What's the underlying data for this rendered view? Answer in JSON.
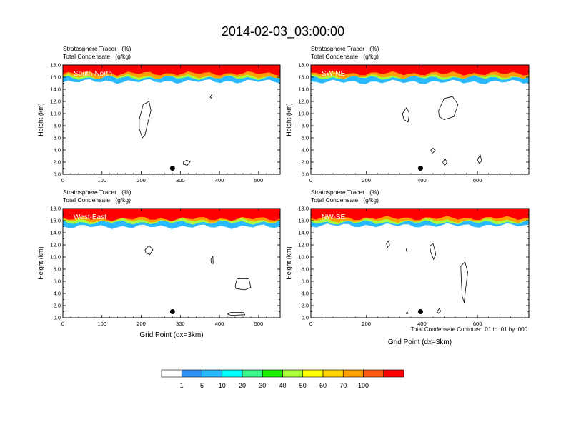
{
  "figure_title": "2014-02-03_03:00:00",
  "footnote": "Total Condensate Contours: .01 to .01 by .000",
  "colors": {
    "levels": [
      "#ffffff",
      "#2e8ff5",
      "#2ab9ff",
      "#00ffff",
      "#3cf78a",
      "#1ef000",
      "#aaff3c",
      "#ffff00",
      "#ffd200",
      "#ffa000",
      "#ff5a14",
      "#ff0000"
    ],
    "marker": "#000000",
    "contour": "#000000"
  },
  "chart_data": [
    {
      "type": "heatmap",
      "label": "South-North",
      "title_line1": "Stratosphere Tracer   (%)",
      "title_line2": "Total Condensate   (g/kg)",
      "xlabel": "",
      "ylabel": "Height (km)",
      "xlim": [
        0,
        555
      ],
      "ylim": [
        0,
        18
      ],
      "xticks": [
        0,
        100,
        200,
        300,
        400,
        500
      ],
      "yticks": [
        0.0,
        2.0,
        4.0,
        6.0,
        8.0,
        10.0,
        12.0,
        14.0,
        16.0,
        18.0
      ],
      "tracer_layers": [
        {
          "level": 100,
          "base_km": 16.6
        },
        {
          "level": 70,
          "base_km": 16.1
        },
        {
          "level": 40,
          "base_km": 15.9
        },
        {
          "level": 5,
          "base_km": 15.3
        }
      ],
      "marker": {
        "x": 280,
        "y_km": 1.0
      },
      "condensate_contours": [
        [
          [
            195,
            9
          ],
          [
            205,
            11.5
          ],
          [
            220,
            12
          ],
          [
            225,
            10.5
          ],
          [
            215,
            8
          ],
          [
            210,
            6.5
          ],
          [
            203,
            6
          ],
          [
            195,
            7.5
          ]
        ],
        [
          [
            307,
            2
          ],
          [
            316,
            2.3
          ],
          [
            325,
            2.1
          ],
          [
            318,
            1.5
          ],
          [
            308,
            1.6
          ]
        ],
        [
          [
            376,
            12.7
          ],
          [
            381,
            13.2
          ],
          [
            380,
            12.5
          ]
        ]
      ]
    },
    {
      "type": "heatmap",
      "label": "SW-NE",
      "title_line1": "Stratosphere Tracer   (%)",
      "title_line2": "Total Condensate   (g/kg)",
      "xlabel": "",
      "ylabel": "Height (km)",
      "xlim": [
        0,
        785
      ],
      "ylim": [
        0,
        18
      ],
      "xticks": [
        0,
        200,
        400,
        600
      ],
      "yticks": [
        0.0,
        2.0,
        4.0,
        6.0,
        8.0,
        10.0,
        12.0,
        14.0,
        16.0,
        18.0
      ],
      "tracer_layers": [
        {
          "level": 100,
          "base_km": 16.6
        },
        {
          "level": 70,
          "base_km": 16.1
        },
        {
          "level": 40,
          "base_km": 15.9
        },
        {
          "level": 5,
          "base_km": 15.2
        }
      ],
      "marker": {
        "x": 395,
        "y_km": 1.0
      },
      "condensate_contours": [
        [
          [
            460,
            10.5
          ],
          [
            480,
            12.5
          ],
          [
            510,
            12.8
          ],
          [
            530,
            11.5
          ],
          [
            515,
            9.5
          ],
          [
            480,
            9
          ],
          [
            462,
            9.5
          ]
        ],
        [
          [
            330,
            10
          ],
          [
            345,
            11
          ],
          [
            355,
            10
          ],
          [
            350,
            8.6
          ],
          [
            335,
            9
          ]
        ],
        [
          [
            432,
            4
          ],
          [
            440,
            4.3
          ],
          [
            448,
            3.9
          ],
          [
            438,
            3.5
          ]
        ],
        [
          [
            475,
            2
          ],
          [
            483,
            2.6
          ],
          [
            490,
            2
          ],
          [
            482,
            1.4
          ]
        ],
        [
          [
            600,
            2.4
          ],
          [
            610,
            3.2
          ],
          [
            615,
            2.2
          ],
          [
            606,
            1.8
          ]
        ]
      ]
    },
    {
      "type": "heatmap",
      "label": "West-East",
      "title_line1": "Stratosphere Tracer   (%)",
      "title_line2": "Total Condensate   (g/kg)",
      "xlabel": "Grid Point (dx=3km)",
      "ylabel": "Height (km)",
      "xlim": [
        0,
        555
      ],
      "ylim": [
        0,
        18
      ],
      "xticks": [
        0,
        100,
        200,
        300,
        400,
        500
      ],
      "yticks": [
        0.0,
        2.0,
        4.0,
        6.0,
        8.0,
        10.0,
        12.0,
        14.0,
        16.0,
        18.0
      ],
      "tracer_layers": [
        {
          "level": 100,
          "base_km": 16.3
        },
        {
          "level": 70,
          "base_km": 16.0
        },
        {
          "level": 40,
          "base_km": 15.7
        },
        {
          "level": 5,
          "base_km": 15.0
        }
      ],
      "marker": {
        "x": 280,
        "y_km": 1.0
      },
      "condensate_contours": [
        [
          [
            210,
            11.2
          ],
          [
            220,
            11.9
          ],
          [
            230,
            11.2
          ],
          [
            222,
            10.4
          ],
          [
            212,
            10.7
          ]
        ],
        [
          [
            378,
            9.6
          ],
          [
            383,
            10.1
          ],
          [
            384,
            8.9
          ],
          [
            379,
            9
          ]
        ],
        [
          [
            440,
            5.2
          ],
          [
            445,
            6.4
          ],
          [
            475,
            6.4
          ],
          [
            480,
            5
          ],
          [
            465,
            4.6
          ],
          [
            442,
            4.8
          ]
        ],
        [
          [
            420,
            0.6
          ],
          [
            430,
            0.9
          ],
          [
            460,
            0.9
          ],
          [
            465,
            0.5
          ],
          [
            430,
            0.4
          ]
        ]
      ]
    },
    {
      "type": "heatmap",
      "label": "NW-SE",
      "title_line1": "Stratosphere Tracer   (%)",
      "title_line2": "Total Condensate   (g/kg)",
      "xlabel": "Grid Point (dx=3km)",
      "ylabel": "Height (km)",
      "xlim": [
        0,
        785
      ],
      "ylim": [
        0,
        18
      ],
      "xticks": [
        0,
        200,
        400,
        600
      ],
      "yticks": [
        0.0,
        2.0,
        4.0,
        6.0,
        8.0,
        10.0,
        12.0,
        14.0,
        16.0,
        18.0
      ],
      "tracer_layers": [
        {
          "level": 100,
          "base_km": 16.4
        },
        {
          "level": 70,
          "base_km": 16.0
        },
        {
          "level": 40,
          "base_km": 15.7
        },
        {
          "level": 5,
          "base_km": 15.2
        }
      ],
      "marker": {
        "x": 395,
        "y_km": 1.0
      },
      "condensate_contours": [
        [
          [
            540,
            8.5
          ],
          [
            555,
            9.2
          ],
          [
            565,
            7.5
          ],
          [
            558,
            5
          ],
          [
            552,
            2.5
          ],
          [
            545,
            3.5
          ],
          [
            542,
            6
          ]
        ],
        [
          [
            428,
            11.8
          ],
          [
            440,
            12.2
          ],
          [
            450,
            10.5
          ],
          [
            442,
            9.6
          ],
          [
            432,
            10.8
          ]
        ],
        [
          [
            272,
            12.2
          ],
          [
            278,
            12.7
          ],
          [
            284,
            12
          ],
          [
            276,
            11.6
          ]
        ],
        [
          [
            343,
            11.2
          ],
          [
            346,
            11.5
          ],
          [
            346,
            10.9
          ]
        ],
        [
          [
            455,
            1.0
          ],
          [
            462,
            1.5
          ],
          [
            468,
            1.1
          ],
          [
            460,
            0.7
          ]
        ],
        [
          [
            343,
            0.7
          ],
          [
            347,
            1.0
          ],
          [
            350,
            0.7
          ]
        ]
      ]
    }
  ],
  "colorbar": {
    "labels": [
      "1",
      "5",
      "10",
      "20",
      "30",
      "40",
      "50",
      "60",
      "70",
      "100"
    ]
  }
}
